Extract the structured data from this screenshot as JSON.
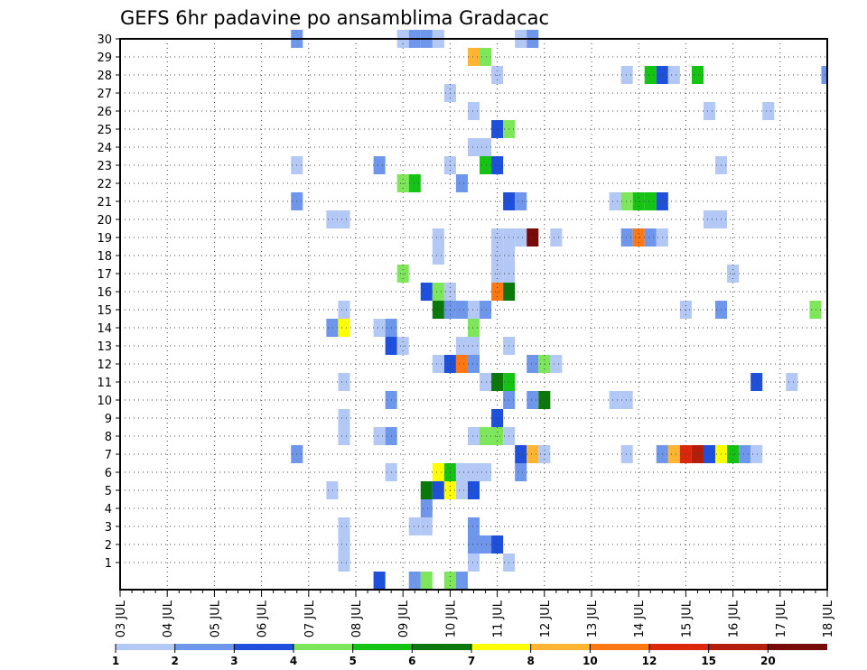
{
  "chart_data": {
    "type": "heatmap",
    "title": "GEFS 6hr padavine po ansamblima Gradacac",
    "x_ticks": [
      "03 JUL",
      "04 JUL",
      "05 JUL",
      "06 JUL",
      "07 JUL",
      "08 JUL",
      "09 JUL",
      "10 JUL",
      "11 JUL",
      "12 JUL",
      "13 JUL",
      "14 JUL",
      "15 JUL",
      "16 JUL",
      "17 JUL",
      "18 JUL"
    ],
    "y_ticks": [
      "1",
      "2",
      "3",
      "4",
      "5",
      "6",
      "7",
      "8",
      "9",
      "10",
      "11",
      "12",
      "13",
      "14",
      "15",
      "16",
      "17",
      "18",
      "19",
      "20",
      "21",
      "22",
      "23",
      "24",
      "25",
      "26",
      "27",
      "28",
      "29",
      "30"
    ],
    "x_range": [
      "03 JUL",
      "18 JUL"
    ],
    "x_step_hours": 6,
    "y_range": [
      0,
      30
    ],
    "grid": true,
    "colorbar": {
      "labels": [
        "1",
        "2",
        "3",
        "4",
        "5",
        "6",
        "7",
        "8",
        "10",
        "12",
        "15",
        "20"
      ],
      "colors": [
        "#b4c8f5",
        "#6e96eb",
        "#1e50dc",
        "#7ee65a",
        "#14c314",
        "#0a780a",
        "#ffff00",
        "#ffb432",
        "#ff7814",
        "#dc280a",
        "#b41e0a",
        "#780a0a"
      ]
    },
    "cells": [
      [
        30,
        3.75,
        2
      ],
      [
        30,
        6,
        1
      ],
      [
        30,
        6.25,
        2
      ],
      [
        30,
        6.5,
        2
      ],
      [
        30,
        6.75,
        1
      ],
      [
        30,
        8.5,
        1
      ],
      [
        30,
        8.75,
        2
      ],
      [
        29,
        7.5,
        8
      ],
      [
        29,
        7.75,
        4
      ],
      [
        29,
        15.75,
        1
      ],
      [
        29,
        16.75,
        2
      ],
      [
        28,
        8,
        1
      ],
      [
        28,
        10.75,
        1
      ],
      [
        28,
        11.25,
        5
      ],
      [
        28,
        11.5,
        3
      ],
      [
        28,
        11.75,
        1
      ],
      [
        28,
        12.25,
        5
      ],
      [
        28,
        15,
        2
      ],
      [
        28,
        15.75,
        1
      ],
      [
        27,
        7,
        1
      ],
      [
        27,
        16.25,
        1
      ],
      [
        27,
        16.5,
        1
      ],
      [
        27,
        16.75,
        4
      ],
      [
        26,
        7.5,
        1
      ],
      [
        26,
        12.5,
        1
      ],
      [
        26,
        13.75,
        1
      ],
      [
        26,
        15.75,
        1
      ],
      [
        26,
        16.75,
        2
      ],
      [
        26,
        17,
        1
      ],
      [
        25,
        8,
        3
      ],
      [
        25,
        8.25,
        4
      ],
      [
        24,
        7.5,
        1
      ],
      [
        24,
        7.75,
        1
      ],
      [
        23,
        3.75,
        1
      ],
      [
        23,
        5.5,
        2
      ],
      [
        23,
        7,
        1
      ],
      [
        23,
        7.75,
        5
      ],
      [
        23,
        8,
        3
      ],
      [
        23,
        12.75,
        1
      ],
      [
        22,
        6,
        4
      ],
      [
        22,
        6.25,
        5
      ],
      [
        22,
        7.25,
        2
      ],
      [
        22,
        16.5,
        1
      ],
      [
        22,
        17.75,
        5
      ],
      [
        21,
        3.75,
        2
      ],
      [
        21,
        8.25,
        3
      ],
      [
        21,
        8.5,
        2
      ],
      [
        21,
        10.5,
        1
      ],
      [
        21,
        10.75,
        4
      ],
      [
        21,
        11,
        5
      ],
      [
        21,
        11.25,
        5
      ],
      [
        21,
        11.5,
        3
      ],
      [
        20,
        4.5,
        1
      ],
      [
        20,
        4.75,
        1
      ],
      [
        20,
        12.5,
        1
      ],
      [
        20,
        12.75,
        1
      ],
      [
        19,
        6.75,
        1
      ],
      [
        19,
        8,
        1
      ],
      [
        19,
        8.25,
        1
      ],
      [
        19,
        8.5,
        1
      ],
      [
        19,
        8.75,
        20
      ],
      [
        19,
        9.25,
        1
      ],
      [
        19,
        10.75,
        2
      ],
      [
        19,
        11,
        10
      ],
      [
        19,
        11.25,
        2
      ],
      [
        19,
        11.5,
        1
      ],
      [
        18,
        6.75,
        1
      ],
      [
        18,
        8,
        1
      ],
      [
        18,
        8.25,
        1
      ],
      [
        17,
        6,
        4
      ],
      [
        17,
        8,
        1
      ],
      [
        17,
        8.25,
        1
      ],
      [
        17,
        13,
        1
      ],
      [
        16,
        6.5,
        3
      ],
      [
        16,
        6.75,
        4
      ],
      [
        16,
        7,
        1
      ],
      [
        16,
        8,
        10
      ],
      [
        16,
        8.25,
        6
      ],
      [
        16,
        15.5,
        1
      ],
      [
        16,
        15.75,
        4
      ],
      [
        16,
        16,
        1
      ],
      [
        15,
        4.75,
        1
      ],
      [
        15,
        6.75,
        6
      ],
      [
        15,
        7,
        2
      ],
      [
        15,
        7.25,
        2
      ],
      [
        15,
        7.5,
        1
      ],
      [
        15,
        7.75,
        2
      ],
      [
        15,
        12,
        1
      ],
      [
        15,
        12.75,
        2
      ],
      [
        15,
        14.75,
        4
      ],
      [
        15,
        15.75,
        1
      ],
      [
        15,
        17.75,
        1
      ],
      [
        14,
        4.5,
        2
      ],
      [
        14,
        4.75,
        7
      ],
      [
        14,
        5.5,
        1
      ],
      [
        14,
        5.75,
        2
      ],
      [
        14,
        7.5,
        4
      ],
      [
        13,
        5.75,
        3
      ],
      [
        13,
        6,
        1
      ],
      [
        13,
        7.25,
        1
      ],
      [
        13,
        7.5,
        1
      ],
      [
        13,
        8.25,
        1
      ],
      [
        12,
        6.75,
        1
      ],
      [
        12,
        7,
        3
      ],
      [
        12,
        7.25,
        10
      ],
      [
        12,
        7.5,
        2
      ],
      [
        12,
        8.75,
        2
      ],
      [
        12,
        9,
        4
      ],
      [
        12,
        9.25,
        1
      ],
      [
        11,
        4.75,
        1
      ],
      [
        11,
        7.75,
        1
      ],
      [
        11,
        8,
        6
      ],
      [
        11,
        8.25,
        5
      ],
      [
        11,
        13.5,
        3
      ],
      [
        11,
        14.25,
        1
      ],
      [
        11,
        18,
        1
      ],
      [
        10,
        5.75,
        2
      ],
      [
        10,
        8.25,
        2
      ],
      [
        10,
        8.75,
        2
      ],
      [
        10,
        9,
        6
      ],
      [
        10,
        10.5,
        1
      ],
      [
        10,
        10.75,
        1
      ],
      [
        9,
        4.75,
        1
      ],
      [
        9,
        8,
        3
      ],
      [
        8,
        4.75,
        1
      ],
      [
        8,
        5.5,
        1
      ],
      [
        8,
        5.75,
        2
      ],
      [
        8,
        7.5,
        1
      ],
      [
        8,
        7.75,
        4
      ],
      [
        8,
        8,
        4
      ],
      [
        8,
        8.25,
        1
      ],
      [
        7,
        3.75,
        2
      ],
      [
        7,
        8.5,
        3
      ],
      [
        7,
        8.75,
        8
      ],
      [
        7,
        9,
        1
      ],
      [
        7,
        10.75,
        1
      ],
      [
        7,
        11.5,
        2
      ],
      [
        7,
        11.75,
        8
      ],
      [
        7,
        12,
        12
      ],
      [
        7,
        12.25,
        15
      ],
      [
        7,
        12.5,
        3
      ],
      [
        7,
        12.75,
        7
      ],
      [
        7,
        13,
        5
      ],
      [
        7,
        13.25,
        2
      ],
      [
        7,
        13.5,
        1
      ],
      [
        7,
        15.75,
        2
      ],
      [
        6,
        5.75,
        1
      ],
      [
        6,
        6.75,
        7
      ],
      [
        6,
        7,
        5
      ],
      [
        6,
        7.25,
        1
      ],
      [
        6,
        7.5,
        1
      ],
      [
        6,
        7.75,
        1
      ],
      [
        6,
        8.5,
        2
      ],
      [
        5,
        4.5,
        1
      ],
      [
        5,
        6.5,
        6
      ],
      [
        5,
        6.75,
        3
      ],
      [
        5,
        7,
        7
      ],
      [
        5,
        7.25,
        1
      ],
      [
        5,
        7.5,
        3
      ],
      [
        4,
        6.5,
        2
      ],
      [
        3,
        4.75,
        1
      ],
      [
        3,
        6.25,
        1
      ],
      [
        3,
        6.5,
        1
      ],
      [
        3,
        7.5,
        2
      ],
      [
        2,
        4.75,
        1
      ],
      [
        2,
        7.5,
        2
      ],
      [
        2,
        7.75,
        2
      ],
      [
        2,
        8,
        3
      ],
      [
        1,
        4.75,
        1
      ],
      [
        1,
        7.5,
        1
      ],
      [
        1,
        8.25,
        1
      ],
      [
        0,
        5.5,
        3
      ],
      [
        0,
        6.25,
        2
      ],
      [
        0,
        6.5,
        4
      ],
      [
        0,
        7,
        4
      ],
      [
        0,
        7.25,
        2
      ],
      [
        0,
        16.75,
        3
      ]
    ]
  }
}
